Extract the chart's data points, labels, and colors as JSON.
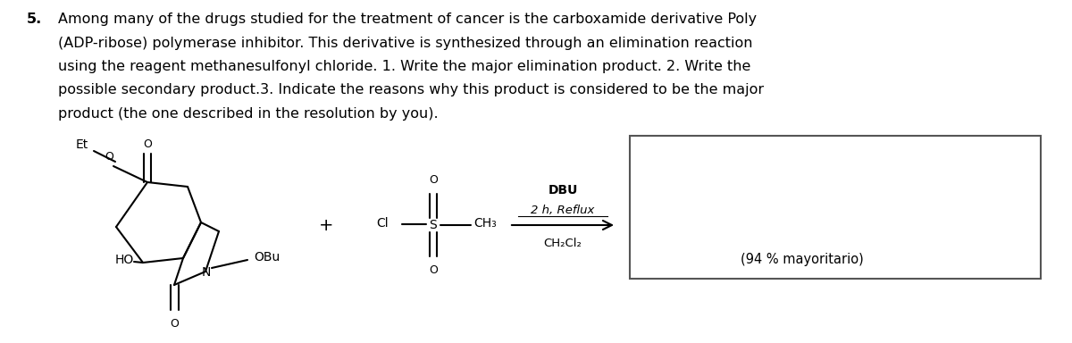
{
  "bg_color": "#ffffff",
  "text_color": "#000000",
  "paragraph_number": "5.",
  "paragraph_text": "Among many of the drugs studied for the treatment of cancer is the carboxamide derivative Poly\n(ADP-ribose) polymerase inhibitor. This derivative is synthesized through an elimination reaction\nusing the reagent methanesulfonyl chloride. 1. Write the major elimination product. 2. Write the\npossible secondary product.3. Indicate the reasons why this product is considered to be the major\nproduct (the one described in the resolution by you).",
  "reagent_label_top": "DBU",
  "reagent_label_mid": "2 h, Reflux",
  "reagent_label_bot": "CH₂Cl₂",
  "product_label": "(94 % mayoritario)",
  "plus_sign": "+",
  "font_size_para": 11.5,
  "font_size_chem": 11,
  "font_size_label": 10.5
}
